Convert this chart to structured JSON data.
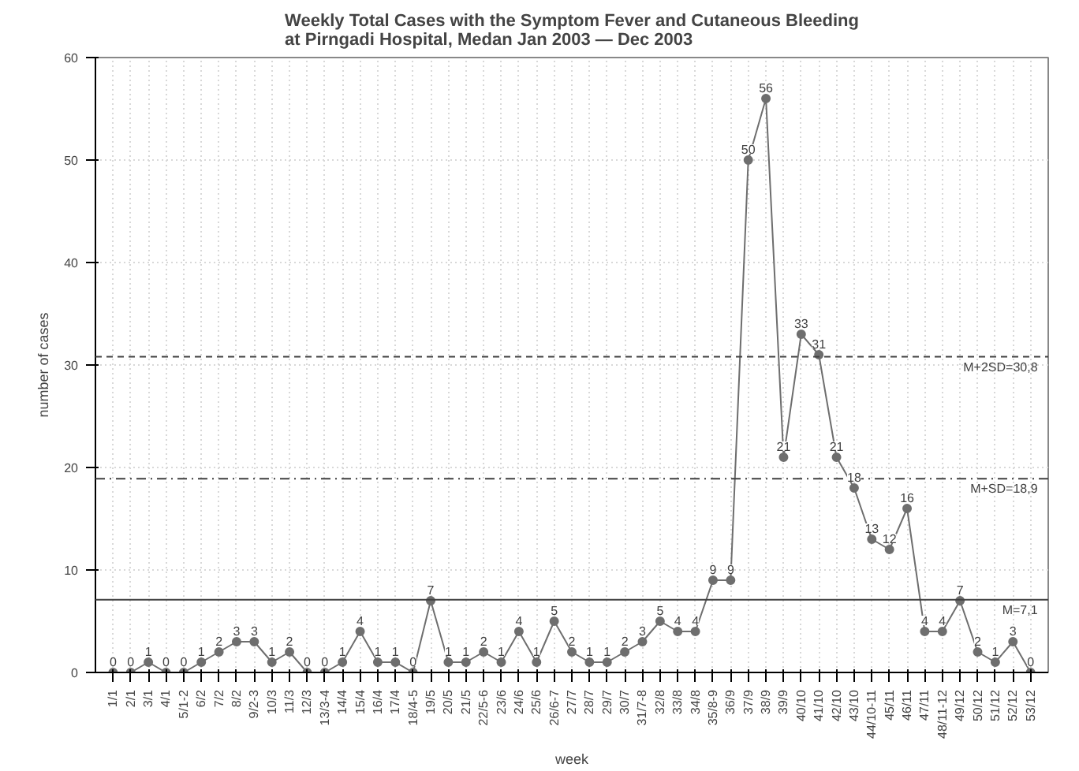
{
  "chart_data": {
    "type": "line",
    "title": "Weekly Total Cases with the Symptom Fever and Cutaneous Bleeding\nat Pirngadi Hospital, Medan Jan 2003 — Dec 2003",
    "xlabel": "week",
    "ylabel": "number of cases",
    "categories": [
      "1/1",
      "2/1",
      "3/1",
      "4/1",
      "5/1-2",
      "6/2",
      "7/2",
      "8/2",
      "9/2-3",
      "10/3",
      "11/3",
      "12/3",
      "13/3-4",
      "14/4",
      "15/4",
      "16/4",
      "17/4",
      "18/4-5",
      "19/5",
      "20/5",
      "21/5",
      "22/5-6",
      "23/6",
      "24/6",
      "25/6",
      "26/6-7",
      "27/7",
      "28/7",
      "29/7",
      "30/7",
      "31/7-8",
      "32/8",
      "33/8",
      "34/8",
      "35/8-9",
      "36/9",
      "37/9",
      "38/9",
      "39/9",
      "40/10",
      "41/10",
      "42/10",
      "43/10",
      "44/10-11",
      "45/11",
      "46/11",
      "47/11",
      "48/11-12",
      "49/12",
      "50/12",
      "51/12",
      "52/12",
      "53/12"
    ],
    "series": [
      {
        "color": "#6e6e6e",
        "values": [
          0,
          0,
          1,
          0,
          0,
          1,
          2,
          3,
          3,
          1,
          2,
          0,
          0,
          1,
          4,
          1,
          1,
          0,
          7,
          1,
          1,
          2,
          1,
          4,
          1,
          5,
          2,
          1,
          1,
          2,
          3,
          5,
          4,
          4,
          9,
          9,
          50,
          56,
          21,
          33,
          31,
          21,
          18,
          13,
          12,
          16,
          4,
          4,
          7,
          2,
          1,
          3,
          0
        ]
      }
    ],
    "ylim": [
      0,
      60
    ],
    "yticks": [
      0,
      10,
      20,
      30,
      40,
      50,
      60
    ],
    "grid": true,
    "marker": "circle",
    "line_style": "solid",
    "data_labels": true,
    "ref_lines": [
      {
        "axis": "y",
        "value": 7.1,
        "label": "M=7,1",
        "line_style": "solid",
        "color": "#404040"
      },
      {
        "axis": "y",
        "value": 18.9,
        "label": "M+SD=18,9",
        "line_style": "dashdot",
        "color": "#404040"
      },
      {
        "axis": "y",
        "value": 30.8,
        "label": "M+2SD=30,8",
        "line_style": "dashed",
        "color": "#404040"
      }
    ]
  }
}
